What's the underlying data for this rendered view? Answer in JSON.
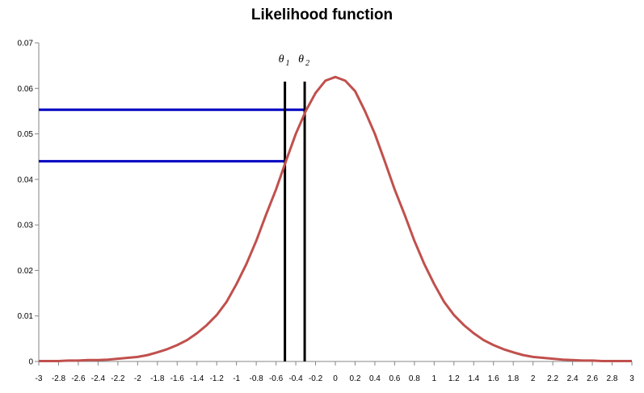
{
  "chart_data": {
    "type": "line",
    "title": "Likelihood function",
    "xlabel": "",
    "ylabel": "",
    "xlim": [
      -3,
      3
    ],
    "ylim": [
      0,
      0.07
    ],
    "grid": false,
    "x_ticks": [
      "-3",
      "-2.8",
      "-2.6",
      "-2.4",
      "-2.2",
      "-2",
      "-1.8",
      "-1.6",
      "-1.4",
      "-1.2",
      "-1",
      "-0.8",
      "-0.6",
      "-0.4",
      "-0.2",
      "0",
      "0.2",
      "0.4",
      "0.6",
      "0.8",
      "1",
      "1.2",
      "1.4",
      "1.6",
      "1.8",
      "2",
      "2.2",
      "2.4",
      "2.6",
      "2.8",
      "3"
    ],
    "y_ticks": [
      "0",
      "0.01",
      "0.02",
      "0.03",
      "0.04",
      "0.05",
      "0.06",
      "0.07"
    ],
    "series": [
      {
        "color": "#c0504d",
        "x": [
          -3,
          -2.9,
          -2.8,
          -2.7,
          -2.6,
          -2.5,
          -2.4,
          -2.3,
          -2.2,
          -2.1,
          -2,
          -1.9,
          -1.8,
          -1.7,
          -1.6,
          -1.5,
          -1.4,
          -1.3,
          -1.2,
          -1.1,
          -1,
          -0.9,
          -0.8,
          -0.7,
          -0.6,
          -0.5,
          -0.4,
          -0.3,
          -0.2,
          -0.1,
          0,
          0.1,
          0.2,
          0.3,
          0.4,
          0.5,
          0.6,
          0.7,
          0.8,
          0.9,
          1,
          1.1,
          1.2,
          1.3,
          1.4,
          1.5,
          1.6,
          1.7,
          1.8,
          1.9,
          2,
          2.1,
          2.2,
          2.3,
          2.4,
          2.5,
          2.6,
          2.7,
          2.8,
          2.9,
          3
        ],
        "y": [
          0.0001,
          0.0001,
          0.0001,
          0.0002,
          0.0002,
          0.0003,
          0.0003,
          0.0004,
          0.0006,
          0.0008,
          0.001,
          0.0014,
          0.002,
          0.0027,
          0.0036,
          0.0047,
          0.0062,
          0.008,
          0.0102,
          0.0131,
          0.017,
          0.0214,
          0.0265,
          0.0323,
          0.0378,
          0.044,
          0.05,
          0.055,
          0.059,
          0.0617,
          0.0625,
          0.0617,
          0.0594,
          0.055,
          0.05,
          0.044,
          0.0378,
          0.0323,
          0.0265,
          0.0214,
          0.017,
          0.0131,
          0.0102,
          0.008,
          0.0062,
          0.0047,
          0.0036,
          0.0027,
          0.002,
          0.0014,
          0.001,
          0.0008,
          0.0006,
          0.0004,
          0.0003,
          0.0002,
          0.0002,
          0.0001,
          0.0001,
          0.0001,
          0.0001
        ]
      }
    ],
    "vertical_markers": [
      {
        "x": -0.51,
        "y_top": 0.0615,
        "label": "θ",
        "subscript": "1"
      },
      {
        "x": -0.31,
        "y_top": 0.0615,
        "label": "θ",
        "subscript": "2"
      }
    ],
    "horizontal_markers": [
      {
        "y": 0.0553,
        "x_to": -0.31,
        "color": "#0000c0"
      },
      {
        "y": 0.044,
        "x_to": -0.51,
        "color": "#0000c0"
      }
    ]
  }
}
